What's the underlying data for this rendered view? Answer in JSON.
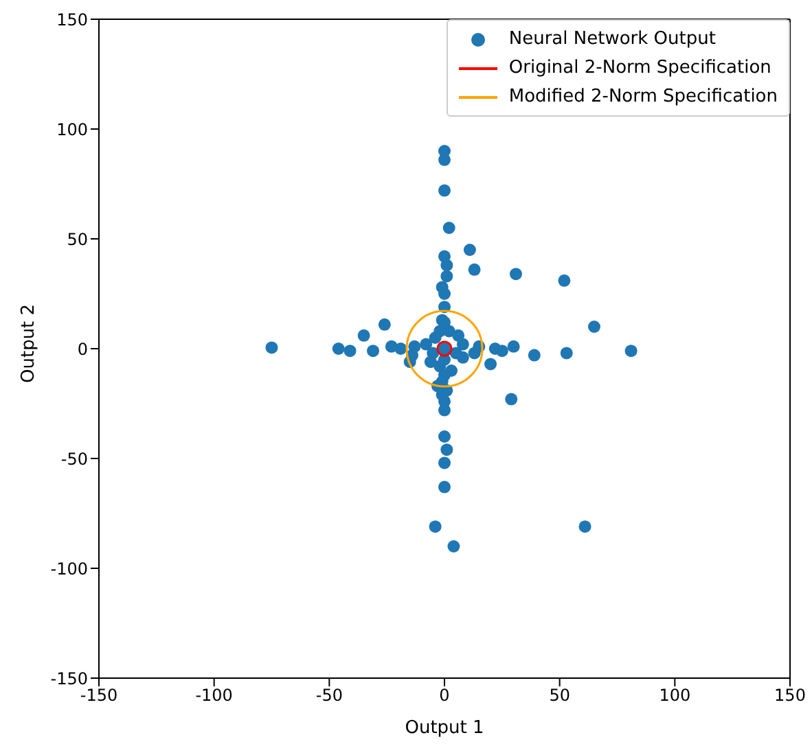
{
  "chart_data": {
    "type": "scatter",
    "xlabel": "Output 1",
    "ylabel": "Output 2",
    "xlim": [
      -150,
      150
    ],
    "ylim": [
      -150,
      150
    ],
    "xticks": [
      -150,
      -100,
      -50,
      0,
      50,
      100,
      150
    ],
    "yticks": [
      -150,
      -100,
      -50,
      0,
      50,
      100,
      150
    ],
    "legend": "top right",
    "annotations": [
      "Original 2-Norm Specification",
      "Modified 2-Norm Specification"
    ],
    "series": [
      {
        "name": "Neural Network Output",
        "marker": "circle",
        "color": "#1f77b4",
        "x": [
          0,
          0,
          0,
          2,
          11,
          13,
          31,
          52,
          0,
          1,
          1,
          -1,
          0,
          0,
          -26,
          -35,
          -75,
          -46,
          -41,
          -31,
          -19,
          -13,
          65,
          81,
          53,
          39,
          30,
          20,
          29,
          0,
          1,
          0,
          0,
          -4,
          4,
          61,
          -1,
          0,
          0,
          -1,
          0,
          5,
          -5,
          2,
          -2,
          8,
          -8,
          8,
          -2,
          0,
          0,
          -4,
          6,
          -6,
          0,
          13,
          -14,
          15,
          -15,
          -3,
          1,
          22,
          25,
          -23,
          3,
          -1
        ],
        "values": [
          90,
          86,
          72,
          55,
          45,
          36,
          34,
          31,
          42,
          38,
          33,
          28,
          25,
          19,
          11,
          6,
          0.5,
          0,
          -1,
          -1,
          0,
          1,
          10,
          -1,
          -2,
          -3,
          1,
          -7,
          -23,
          -40,
          -46,
          -52,
          -63,
          -81,
          -90,
          -81,
          -15,
          -24,
          -28,
          13,
          0,
          -2,
          -2,
          8,
          8,
          2,
          2,
          -4,
          -8,
          -12,
          12,
          5,
          6,
          -6,
          -5,
          -2,
          -3,
          1,
          -6,
          -17,
          -19,
          0,
          -1,
          1,
          -10,
          -21
        ]
      }
    ]
  }
}
